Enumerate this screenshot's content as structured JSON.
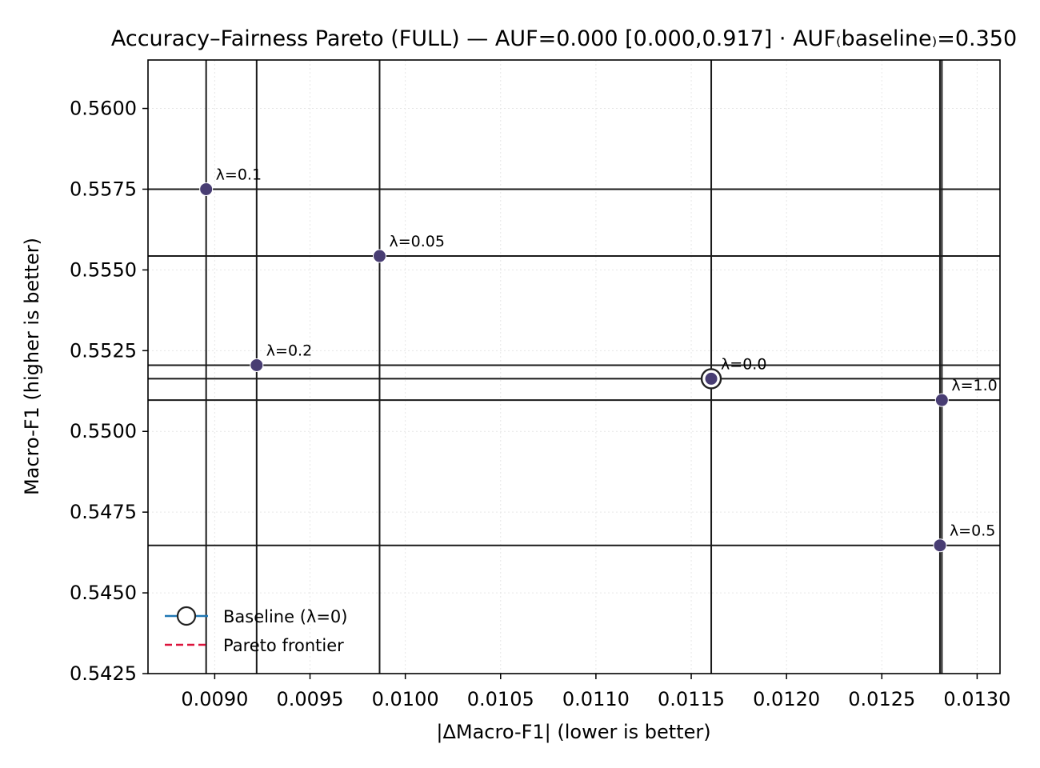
{
  "chart_data": {
    "type": "scatter",
    "title": "Accuracy–Fairness Pareto (FULL) — AUF=0.000 [0.000,0.917] · AUF₍baseline₎=0.350",
    "xlabel": "|ΔMacro-F1| (lower is better)",
    "ylabel": "Macro-F1 (higher is better)",
    "xlim": [
      0.00865,
      0.01312
    ],
    "ylim": [
      0.5425,
      0.5615
    ],
    "xticks": [
      "0.0090",
      "0.0095",
      "0.0100",
      "0.0105",
      "0.0110",
      "0.0115",
      "0.0120",
      "0.0125",
      "0.0130"
    ],
    "xtick_values": [
      0.009,
      0.0095,
      0.01,
      0.0105,
      0.011,
      0.0115,
      0.012,
      0.0125,
      0.013
    ],
    "yticks": [
      "0.5425",
      "0.5450",
      "0.5475",
      "0.5500",
      "0.5525",
      "0.5550",
      "0.5575",
      "0.5600"
    ],
    "ytick_values": [
      0.5425,
      0.545,
      0.5475,
      0.55,
      0.5525,
      0.555,
      0.5575,
      0.56
    ],
    "grid": true,
    "points": [
      {
        "label": "λ=0.1",
        "x": 0.008955,
        "y": 0.5575
      },
      {
        "label": "λ=0.05",
        "x": 0.009865,
        "y": 0.55543
      },
      {
        "label": "λ=0.2",
        "x": 0.00922,
        "y": 0.55205
      },
      {
        "label": "λ=0.0",
        "x": 0.011605,
        "y": 0.55163
      },
      {
        "label": "λ=1.0",
        "x": 0.012815,
        "y": 0.55097
      },
      {
        "label": "λ=0.5",
        "x": 0.012805,
        "y": 0.54647
      }
    ],
    "baseline": {
      "x": 0.011605,
      "y": 0.55163
    },
    "legend": {
      "position": "lower-left",
      "entries": [
        "Baseline (λ=0)",
        "Pareto frontier"
      ]
    },
    "colors": {
      "point": "#483d73",
      "reference_line": "#1a1a1a",
      "baseline_marker_edge": "#222222",
      "legend_baseline_line": "#1f77b4",
      "pareto_frontier": "#dc143c",
      "grid": "#e6e6e6"
    }
  }
}
